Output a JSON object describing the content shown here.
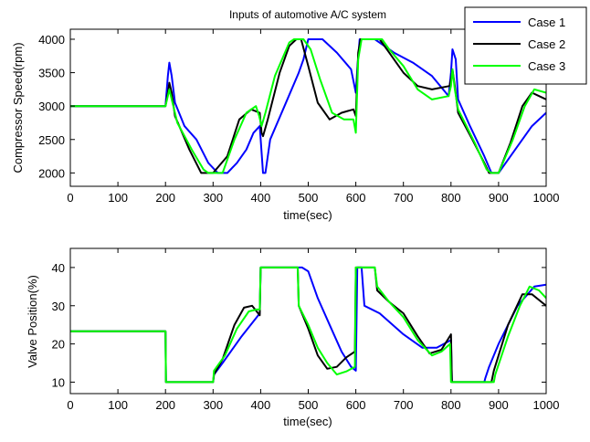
{
  "chart_data": [
    {
      "type": "line",
      "title": "Inputs of automotive A/C system",
      "xlabel": "time(sec)",
      "ylabel": "Compressor Speed(rpm)",
      "xlim": [
        0,
        1000
      ],
      "ylim": [
        1800,
        4150
      ],
      "xticks": [
        "0",
        "100",
        "200",
        "300",
        "400",
        "500",
        "600",
        "700",
        "800",
        "900",
        "1000"
      ],
      "yticks": [
        "2000",
        "2500",
        "3000",
        "3500",
        "4000"
      ],
      "grid": false,
      "legend": "top-right",
      "series": [
        {
          "name": "Case 1",
          "color": "#0000ff",
          "points": [
            [
              0,
              3000
            ],
            [
              200,
              3000
            ],
            [
              205,
              3450
            ],
            [
              208,
              3650
            ],
            [
              213,
              3450
            ],
            [
              220,
              3050
            ],
            [
              240,
              2700
            ],
            [
              265,
              2500
            ],
            [
              290,
              2150
            ],
            [
              310,
              2000
            ],
            [
              330,
              2000
            ],
            [
              350,
              2150
            ],
            [
              370,
              2350
            ],
            [
              385,
              2600
            ],
            [
              398,
              2700
            ],
            [
              405,
              2000
            ],
            [
              410,
              2000
            ],
            [
              420,
              2500
            ],
            [
              450,
              3000
            ],
            [
              480,
              3500
            ],
            [
              490,
              3700
            ],
            [
              500,
              4000
            ],
            [
              530,
              4000
            ],
            [
              560,
              3800
            ],
            [
              590,
              3550
            ],
            [
              600,
              3200
            ],
            [
              603,
              3550
            ],
            [
              608,
              4000
            ],
            [
              640,
              4000
            ],
            [
              680,
              3800
            ],
            [
              720,
              3650
            ],
            [
              760,
              3450
            ],
            [
              795,
              3150
            ],
            [
              800,
              3500
            ],
            [
              803,
              3850
            ],
            [
              810,
              3700
            ],
            [
              815,
              3100
            ],
            [
              840,
              2700
            ],
            [
              870,
              2250
            ],
            [
              885,
              2000
            ],
            [
              900,
              2000
            ],
            [
              930,
              2300
            ],
            [
              970,
              2700
            ],
            [
              1000,
              2900
            ]
          ]
        },
        {
          "name": "Case 2",
          "color": "#000000",
          "points": [
            [
              0,
              3000
            ],
            [
              200,
              3000
            ],
            [
              205,
              3200
            ],
            [
              208,
              3350
            ],
            [
              213,
              3200
            ],
            [
              220,
              2850
            ],
            [
              250,
              2350
            ],
            [
              275,
              2000
            ],
            [
              300,
              2000
            ],
            [
              330,
              2250
            ],
            [
              355,
              2800
            ],
            [
              380,
              2950
            ],
            [
              398,
              2900
            ],
            [
              402,
              2600
            ],
            [
              405,
              2550
            ],
            [
              415,
              2800
            ],
            [
              440,
              3500
            ],
            [
              460,
              3900
            ],
            [
              475,
              4000
            ],
            [
              485,
              4000
            ],
            [
              500,
              3600
            ],
            [
              520,
              3050
            ],
            [
              545,
              2800
            ],
            [
              570,
              2900
            ],
            [
              595,
              2950
            ],
            [
              600,
              2850
            ],
            [
              605,
              3800
            ],
            [
              610,
              4000
            ],
            [
              650,
              4000
            ],
            [
              670,
              3800
            ],
            [
              700,
              3500
            ],
            [
              730,
              3300
            ],
            [
              760,
              3250
            ],
            [
              797,
              3300
            ],
            [
              800,
              3400
            ],
            [
              803,
              3550
            ],
            [
              808,
              3300
            ],
            [
              815,
              2900
            ],
            [
              845,
              2500
            ],
            [
              870,
              2150
            ],
            [
              880,
              2000
            ],
            [
              900,
              2000
            ],
            [
              925,
              2450
            ],
            [
              950,
              3000
            ],
            [
              970,
              3200
            ],
            [
              985,
              3150
            ],
            [
              1000,
              3100
            ]
          ]
        },
        {
          "name": "Case 3",
          "color": "#00ff00",
          "points": [
            [
              0,
              3000
            ],
            [
              200,
              3000
            ],
            [
              205,
              3150
            ],
            [
              208,
              3250
            ],
            [
              213,
              3100
            ],
            [
              225,
              2750
            ],
            [
              255,
              2350
            ],
            [
              280,
              2050
            ],
            [
              290,
              2000
            ],
            [
              320,
              2000
            ],
            [
              345,
              2500
            ],
            [
              370,
              2900
            ],
            [
              390,
              3000
            ],
            [
              397,
              2850
            ],
            [
              402,
              2700
            ],
            [
              410,
              2900
            ],
            [
              430,
              3450
            ],
            [
              460,
              3950
            ],
            [
              470,
              4000
            ],
            [
              490,
              4000
            ],
            [
              505,
              3850
            ],
            [
              525,
              3400
            ],
            [
              550,
              2900
            ],
            [
              575,
              2800
            ],
            [
              595,
              2800
            ],
            [
              600,
              2600
            ],
            [
              605,
              3700
            ],
            [
              612,
              4000
            ],
            [
              655,
              4000
            ],
            [
              670,
              3850
            ],
            [
              700,
              3600
            ],
            [
              730,
              3250
            ],
            [
              760,
              3100
            ],
            [
              795,
              3150
            ],
            [
              800,
              3300
            ],
            [
              803,
              3550
            ],
            [
              808,
              3250
            ],
            [
              815,
              2950
            ],
            [
              850,
              2450
            ],
            [
              875,
              2050
            ],
            [
              885,
              2000
            ],
            [
              900,
              2000
            ],
            [
              930,
              2500
            ],
            [
              955,
              3000
            ],
            [
              975,
              3250
            ],
            [
              1000,
              3200
            ]
          ]
        }
      ]
    },
    {
      "type": "line",
      "title": "",
      "xlabel": "time(sec)",
      "ylabel": "Valve Position(%)",
      "xlim": [
        0,
        1000
      ],
      "ylim": [
        7,
        45
      ],
      "xticks": [
        "0",
        "100",
        "200",
        "300",
        "400",
        "500",
        "600",
        "700",
        "800",
        "900",
        "1000"
      ],
      "yticks": [
        "10",
        "20",
        "30",
        "40"
      ],
      "grid": false,
      "series": [
        {
          "name": "Case 1",
          "color": "#0000ff",
          "points": [
            [
              0,
              23.3
            ],
            [
              200,
              23.3
            ],
            [
              201,
              10
            ],
            [
              300,
              10
            ],
            [
              302,
              12
            ],
            [
              320,
              15
            ],
            [
              360,
              22
            ],
            [
              392,
              27
            ],
            [
              398,
              28
            ],
            [
              400,
              40
            ],
            [
              487,
              40
            ],
            [
              500,
              39
            ],
            [
              520,
              32
            ],
            [
              545,
              25
            ],
            [
              570,
              18
            ],
            [
              590,
              14
            ],
            [
              600,
              13
            ],
            [
              603,
              40
            ],
            [
              612,
              40
            ],
            [
              618,
              30
            ],
            [
              650,
              28
            ],
            [
              700,
              22.5
            ],
            [
              740,
              19
            ],
            [
              770,
              19
            ],
            [
              800,
              21
            ],
            [
              802,
              10
            ],
            [
              870,
              10
            ],
            [
              872,
              11
            ],
            [
              880,
              14
            ],
            [
              900,
              20
            ],
            [
              940,
              30
            ],
            [
              975,
              35
            ],
            [
              1000,
              35.5
            ]
          ]
        },
        {
          "name": "Case 2",
          "color": "#000000",
          "points": [
            [
              0,
              23.3
            ],
            [
              200,
              23.3
            ],
            [
              201,
              10
            ],
            [
              300,
              10
            ],
            [
              302,
              12
            ],
            [
              320,
              16
            ],
            [
              345,
              25
            ],
            [
              365,
              29.5
            ],
            [
              382,
              30
            ],
            [
              398,
              27.5
            ],
            [
              400,
              40
            ],
            [
              478,
              40
            ],
            [
              480,
              30
            ],
            [
              500,
              24
            ],
            [
              520,
              17
            ],
            [
              540,
              13.5
            ],
            [
              560,
              14
            ],
            [
              580,
              16.5
            ],
            [
              598,
              18
            ],
            [
              600,
              40
            ],
            [
              640,
              40
            ],
            [
              645,
              34
            ],
            [
              670,
              31
            ],
            [
              700,
              28
            ],
            [
              730,
              22
            ],
            [
              755,
              17.5
            ],
            [
              780,
              18.5
            ],
            [
              800,
              22.5
            ],
            [
              802,
              10
            ],
            [
              885,
              10
            ],
            [
              890,
              13
            ],
            [
              920,
              25
            ],
            [
              950,
              33
            ],
            [
              970,
              33
            ],
            [
              990,
              31
            ],
            [
              1000,
              30
            ]
          ]
        },
        {
          "name": "Case 3",
          "color": "#00ff00",
          "points": [
            [
              0,
              23.3
            ],
            [
              200,
              23.3
            ],
            [
              201,
              10
            ],
            [
              300,
              10
            ],
            [
              302,
              13
            ],
            [
              325,
              17
            ],
            [
              350,
              24
            ],
            [
              375,
              28.5
            ],
            [
              392,
              29
            ],
            [
              398,
              29
            ],
            [
              400,
              40
            ],
            [
              478,
              40
            ],
            [
              480,
              30
            ],
            [
              500,
              25
            ],
            [
              520,
              19
            ],
            [
              540,
              15
            ],
            [
              560,
              12
            ],
            [
              580,
              12.8
            ],
            [
              598,
              14
            ],
            [
              600,
              40
            ],
            [
              640,
              40
            ],
            [
              645,
              35
            ],
            [
              670,
              31
            ],
            [
              700,
              27
            ],
            [
              730,
              21
            ],
            [
              760,
              17
            ],
            [
              780,
              18
            ],
            [
              798,
              20
            ],
            [
              800,
              10
            ],
            [
              890,
              10
            ],
            [
              893,
              12
            ],
            [
              920,
              22
            ],
            [
              945,
              30
            ],
            [
              965,
              35
            ],
            [
              985,
              34
            ],
            [
              1000,
              32
            ]
          ]
        }
      ]
    }
  ]
}
